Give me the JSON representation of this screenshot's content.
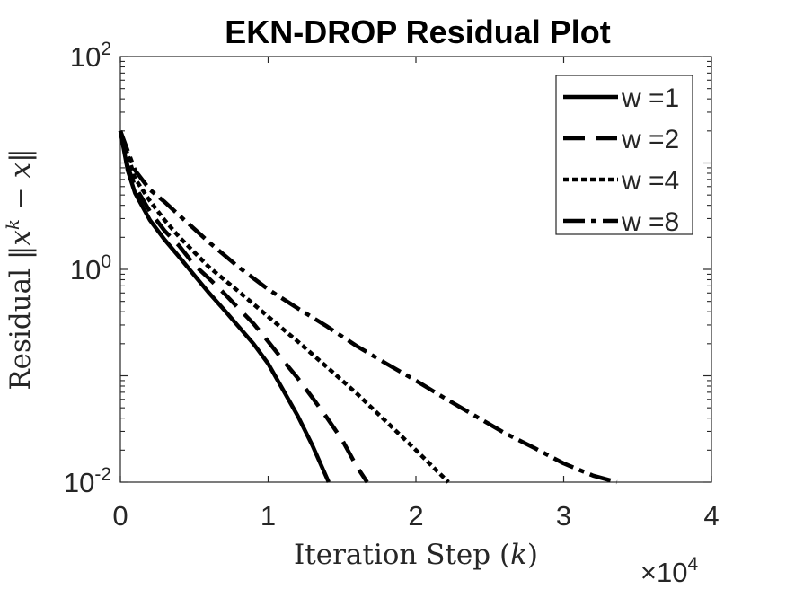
{
  "chart_data": {
    "type": "line",
    "title": "EKN-DROP Residual Plot",
    "xlabel": "Iteration Step (k)",
    "ylabel": "Residual ||x^k − x||",
    "x_exponent_label": "×10^4",
    "xlim": [
      0,
      40000
    ],
    "ylim": [
      0.01,
      100
    ],
    "y_scale": "log",
    "x_ticks": [
      {
        "value": 0,
        "label": "0"
      },
      {
        "value": 10000,
        "label": "1"
      },
      {
        "value": 20000,
        "label": "2"
      },
      {
        "value": 30000,
        "label": "3"
      },
      {
        "value": 40000,
        "label": "4"
      }
    ],
    "y_ticks": [
      {
        "value": 0.01,
        "base": "10",
        "exp": "-2"
      },
      {
        "value": 1,
        "base": "10",
        "exp": "0"
      },
      {
        "value": 100,
        "base": "10",
        "exp": "2"
      }
    ],
    "grid": false,
    "legend_position": "top-right",
    "series": [
      {
        "name": "w =1",
        "style": "solid",
        "x": [
          0,
          500,
          1000,
          2000,
          3000,
          4000,
          5000,
          6000,
          7000,
          8000,
          9000,
          10000,
          11000,
          12000,
          13000,
          14100
        ],
        "y": [
          20,
          8.5,
          5.2,
          2.9,
          1.9,
          1.3,
          0.88,
          0.6,
          0.42,
          0.29,
          0.2,
          0.13,
          0.074,
          0.042,
          0.022,
          0.01
        ]
      },
      {
        "name": "w =2",
        "style": "dashed",
        "x": [
          0,
          500,
          1000,
          2000,
          3000,
          4000,
          5000,
          6000,
          7000,
          8000,
          9000,
          10000,
          11000,
          12000,
          13000,
          14000,
          15000,
          16000,
          16700
        ],
        "y": [
          20,
          9.2,
          6,
          3.5,
          2.3,
          1.65,
          1.1,
          0.82,
          0.6,
          0.43,
          0.31,
          0.21,
          0.14,
          0.095,
          0.062,
          0.04,
          0.025,
          0.014,
          0.01
        ]
      },
      {
        "name": "w =4",
        "style": "dotted",
        "x": [
          0,
          1000,
          2000,
          3000,
          4000,
          5000,
          6000,
          8000,
          10000,
          12000,
          14000,
          16000,
          18000,
          20000,
          22200
        ],
        "y": [
          20,
          7.1,
          4.4,
          2.9,
          2,
          1.45,
          1.05,
          0.62,
          0.36,
          0.21,
          0.12,
          0.068,
          0.037,
          0.02,
          0.01
        ]
      },
      {
        "name": "w =8",
        "style": "dashdot",
        "x": [
          0,
          1000,
          2000,
          3000,
          4000,
          5000,
          6000,
          8000,
          10000,
          12000,
          14000,
          16000,
          18000,
          20000,
          22000,
          24000,
          26000,
          28000,
          30000,
          32000,
          33600
        ],
        "y": [
          20,
          8.5,
          5.6,
          4.3,
          3.2,
          2.4,
          1.8,
          1.05,
          0.65,
          0.43,
          0.29,
          0.19,
          0.13,
          0.09,
          0.061,
          0.042,
          0.029,
          0.021,
          0.015,
          0.0115,
          0.01
        ]
      }
    ]
  }
}
